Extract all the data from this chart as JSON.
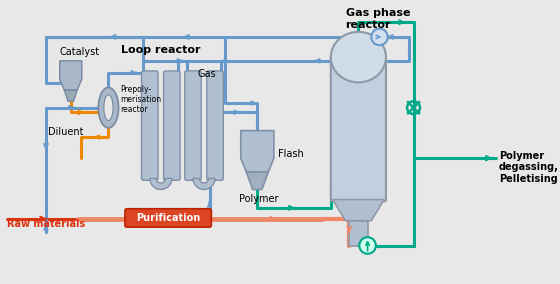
{
  "bg": "#e8e8e8",
  "blue": "#6699cc",
  "blue2": "#4477aa",
  "green": "#00aa88",
  "orange": "#ee8800",
  "red": "#dd3311",
  "salmon": "#ee8866",
  "equip": "#b0bfcc",
  "equip2": "#c8d8e5",
  "equip3": "#d8e5ee",
  "labels": {
    "catalyst": "Catalyst",
    "prepolym": "Prepoly-\nmerisation\nreactor",
    "loop_reactor": "Loop reactor",
    "diluent": "Diluent",
    "purification": "Purification",
    "raw_materials": "Raw materials",
    "gas": "Gas",
    "flash": "Flash",
    "polymer": "Polymer",
    "gas_phase_reactor": "Gas phase\nreactor",
    "polymer_degassing": "Polymer\ndegassing,\nPelletising"
  }
}
